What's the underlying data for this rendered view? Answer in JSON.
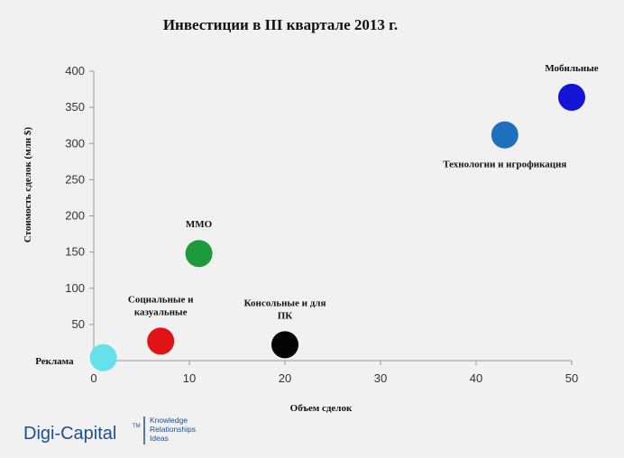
{
  "chart_data": {
    "type": "scatter",
    "title": "Инвестиции в III квартале 2013 г.",
    "xlabel": "Объем сделок",
    "ylabel": "Стоимость сделок (млн $)",
    "xlim": [
      0,
      50
    ],
    "ylim": [
      0,
      400
    ],
    "xticks": [
      0,
      10,
      20,
      30,
      40,
      50
    ],
    "yticks": [
      50,
      100,
      150,
      200,
      250,
      300,
      350,
      400
    ],
    "grid": false,
    "points": [
      {
        "label": [
          "Реклама"
        ],
        "x": 1,
        "y": 4,
        "color": "#66e0ea",
        "label_pos": "left"
      },
      {
        "label": [
          "Социальные и",
          "казуальные"
        ],
        "x": 7,
        "y": 27,
        "color": "#e01414",
        "label_pos": "above"
      },
      {
        "label": [
          "ММО"
        ],
        "x": 11,
        "y": 148,
        "color": "#1e9a3c",
        "label_pos": "above"
      },
      {
        "label": [
          "Консольные и для",
          "ПК"
        ],
        "x": 20,
        "y": 22,
        "color": "#050505",
        "label_pos": "above"
      },
      {
        "label": [
          "Технологии и игрофикация"
        ],
        "x": 43,
        "y": 312,
        "color": "#1f6fbf",
        "label_pos": "below"
      },
      {
        "label": [
          "Мобильные"
        ],
        "x": 50,
        "y": 364,
        "color": "#1414d6",
        "label_pos": "above"
      }
    ]
  },
  "logo": {
    "name": "Digi-Capital",
    "tm": "TM",
    "tagline": [
      "Knowledge",
      "Relationships",
      "Ideas"
    ]
  }
}
